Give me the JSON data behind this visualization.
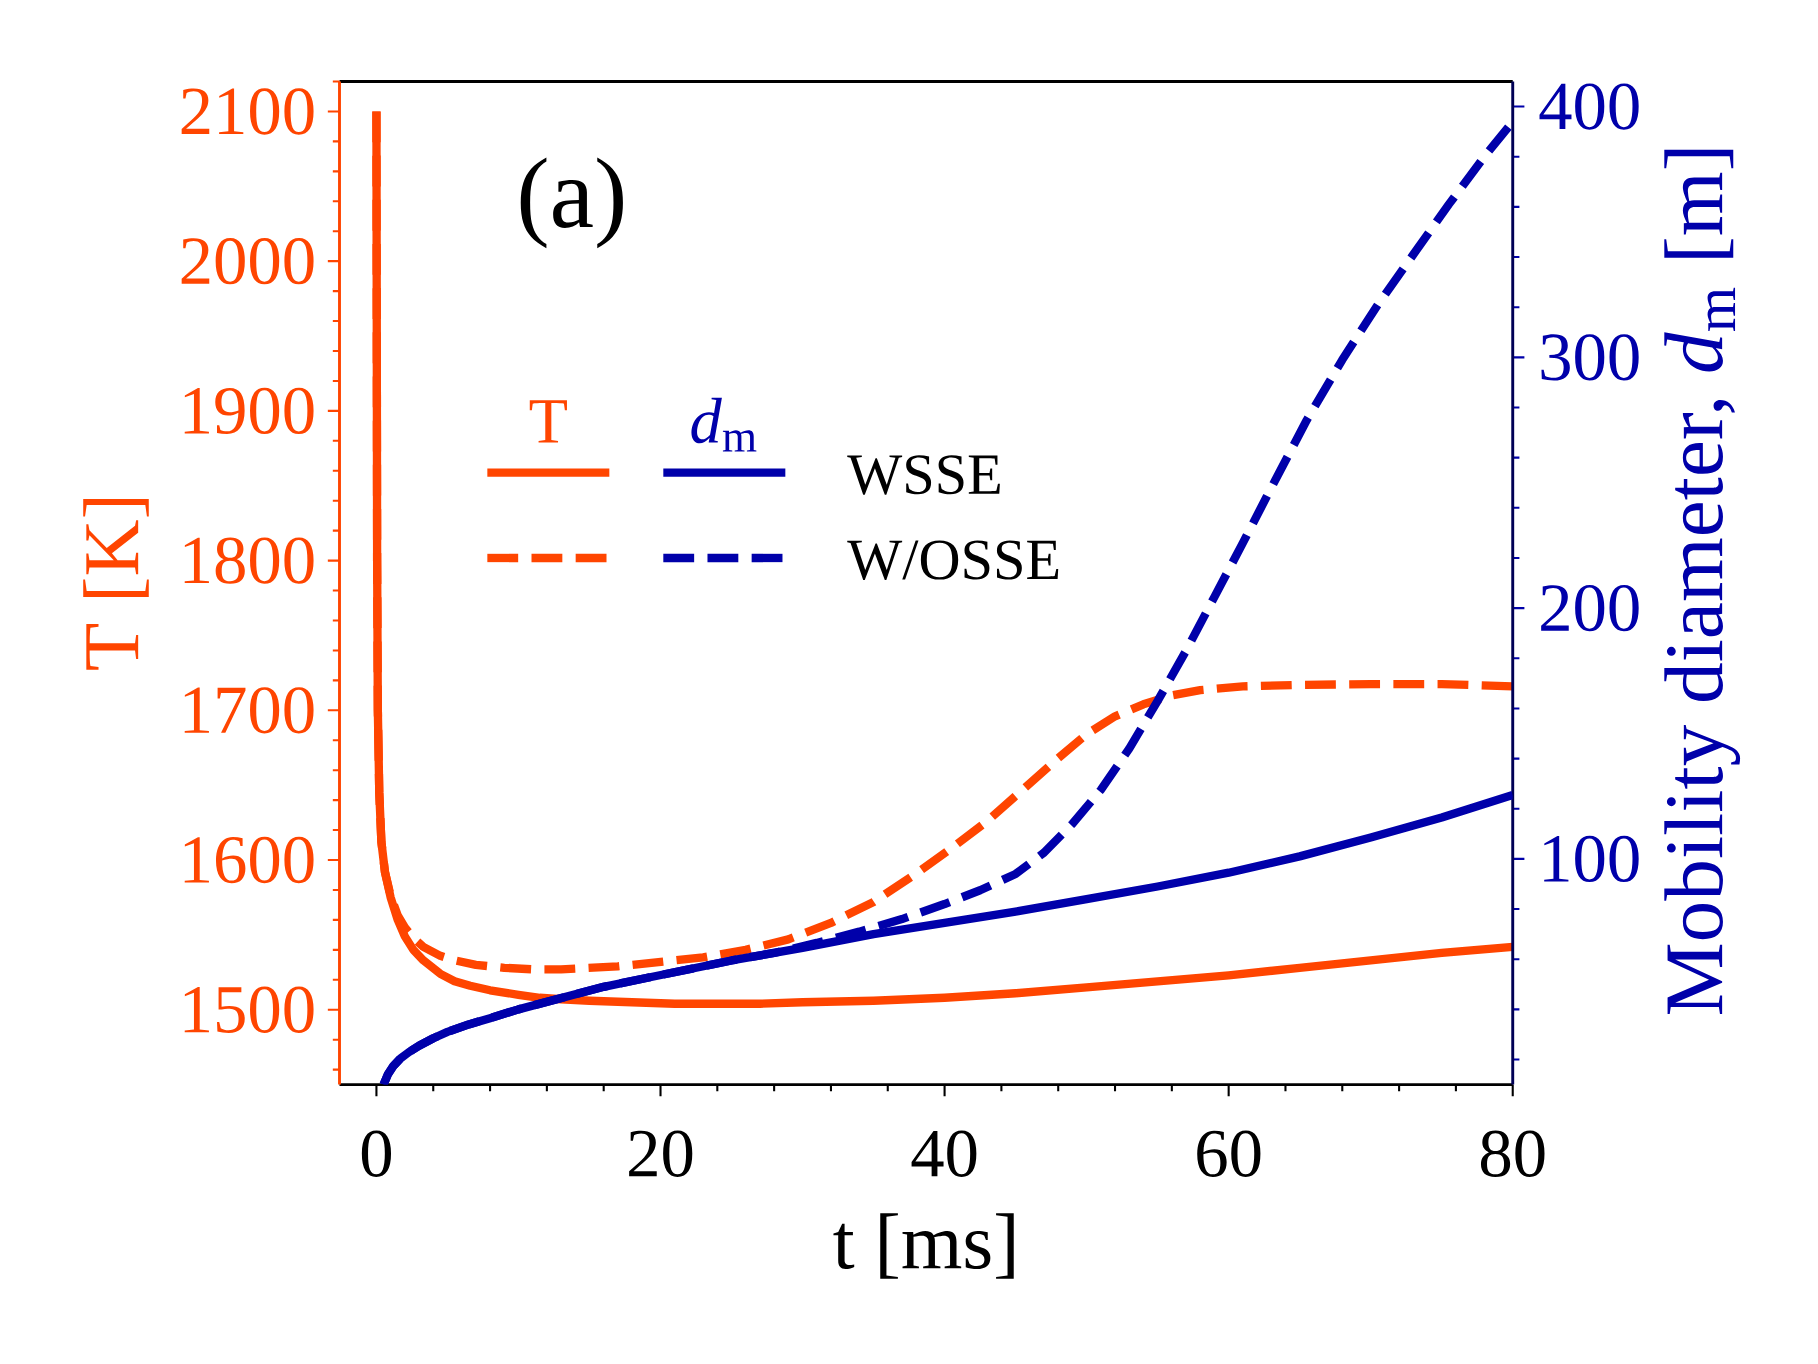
{
  "chart_data": {
    "type": "line",
    "xlabel": "t [ms]",
    "ylabel": "T [K]",
    "y2label": "Mobility diameter, *d*$_{m}$ [m]",
    "annotations": [
      "(a)",
      "T",
      "*d*$_{m}$"
    ],
    "xlim": [
      -2.6,
      80
    ],
    "xticks": [
      0,
      {
        "value": 4,
        "label": null
      },
      {
        "value": 8,
        "label": null
      },
      {
        "value": 12,
        "label": null
      },
      {
        "value": 16,
        "label": null
      },
      20,
      {
        "value": 24,
        "label": null
      },
      {
        "value": 28,
        "label": null
      },
      {
        "value": 32,
        "label": null
      },
      {
        "value": 36,
        "label": null
      },
      40,
      {
        "value": 44,
        "label": null
      },
      {
        "value": 48,
        "label": null
      },
      {
        "value": 52,
        "label": null
      },
      {
        "value": 56,
        "label": null
      },
      60,
      {
        "value": 64,
        "label": null
      },
      {
        "value": 68,
        "label": null
      },
      {
        "value": 72,
        "label": null
      },
      {
        "value": 76,
        "label": null
      },
      80
    ],
    "ylim": [
      1450,
      2120
    ],
    "yticks": [
      {
        "value": 1460,
        "label": null
      },
      {
        "value": 1480,
        "label": null
      },
      1500,
      {
        "value": 1520,
        "label": null
      },
      {
        "value": 1540,
        "label": null
      },
      {
        "value": 1560,
        "label": null
      },
      {
        "value": 1580,
        "label": null
      },
      1600,
      {
        "value": 1620,
        "label": null
      },
      {
        "value": 1640,
        "label": null
      },
      {
        "value": 1660,
        "label": null
      },
      {
        "value": 1680,
        "label": null
      },
      1700,
      {
        "value": 1720,
        "label": null
      },
      {
        "value": 1740,
        "label": null
      },
      {
        "value": 1760,
        "label": null
      },
      {
        "value": 1780,
        "label": null
      },
      1800,
      {
        "value": 1820,
        "label": null
      },
      {
        "value": 1840,
        "label": null
      },
      {
        "value": 1860,
        "label": null
      },
      {
        "value": 1880,
        "label": null
      },
      1900,
      {
        "value": 1920,
        "label": null
      },
      {
        "value": 1940,
        "label": null
      },
      {
        "value": 1960,
        "label": null
      },
      {
        "value": 1980,
        "label": null
      },
      2000,
      {
        "value": 2020,
        "label": null
      },
      {
        "value": 2040,
        "label": null
      },
      {
        "value": 2060,
        "label": null
      },
      {
        "value": 2080,
        "label": null
      },
      2100,
      {
        "value": 2120,
        "label": null
      }
    ],
    "y2lim": [
      10,
      410
    ],
    "y2ticks": [
      {
        "value": 20,
        "label": null
      },
      {
        "value": 40,
        "label": null
      },
      {
        "value": 60,
        "label": null
      },
      {
        "value": 80,
        "label": null
      },
      100,
      {
        "value": 120,
        "label": null
      },
      {
        "value": 140,
        "label": null
      },
      {
        "value": 160,
        "label": null
      },
      {
        "value": 180,
        "label": null
      },
      200,
      {
        "value": 220,
        "label": null
      },
      {
        "value": 240,
        "label": null
      },
      {
        "value": 260,
        "label": null
      },
      {
        "value": 280,
        "label": null
      },
      300,
      {
        "value": 320,
        "label": null
      },
      {
        "value": 340,
        "label": null
      },
      {
        "value": 360,
        "label": null
      },
      {
        "value": 380,
        "label": null
      },
      400
    ],
    "legend": "left",
    "series": [
      {
        "color": "#ff4500",
        "line_style": "solid",
        "x": [
          0,
          0.05,
          0.1,
          0.2,
          0.35,
          0.6,
          1.0,
          1.5,
          2.0,
          2.6,
          3.3,
          4.5,
          5.5,
          6.6,
          8,
          10,
          11.5,
          13,
          15,
          18,
          21,
          24,
          27,
          30,
          35,
          40,
          45,
          50,
          55,
          60,
          65,
          70,
          75,
          80
        ],
        "values": [
          2100,
          1800,
          1700,
          1645,
          1612,
          1592,
          1575,
          1560,
          1549,
          1540,
          1533,
          1524,
          1519,
          1516,
          1513,
          1510,
          1508,
          1507,
          1506,
          1505,
          1504,
          1504,
          1504,
          1505,
          1506,
          1508,
          1511,
          1515,
          1519,
          1523,
          1528,
          1533,
          1538,
          1542
        ]
      },
      {
        "color": "#ff4500",
        "line_style": "dashed",
        "x": [
          0,
          0.05,
          0.1,
          0.2,
          0.35,
          0.6,
          1.0,
          1.5,
          2.0,
          2.6,
          3.3,
          4.5,
          5.5,
          7,
          9,
          11,
          13,
          15,
          17,
          20,
          23,
          26,
          29,
          32,
          35,
          38,
          40.5,
          43,
          45.5,
          48,
          50,
          52,
          54,
          56,
          58,
          61,
          65,
          70,
          75,
          80
        ],
        "values": [
          2100,
          1800,
          1700,
          1645,
          1612,
          1592,
          1576,
          1563,
          1555,
          1548,
          1542,
          1536,
          1533,
          1530,
          1528,
          1527,
          1527,
          1528,
          1529,
          1532,
          1535,
          1540,
          1547,
          1558,
          1572,
          1591,
          1608,
          1626,
          1647,
          1668,
          1684,
          1696,
          1704,
          1710,
          1713.5,
          1716,
          1717,
          1717.5,
          1717.5,
          1716
        ]
      },
      {
        "name": "WSSE",
        "color": "#0000aa",
        "line_style": "solid",
        "axis": "y2",
        "x": [
          0.5,
          0.8,
          1.2,
          1.7,
          2.3,
          3,
          4,
          5,
          6.5,
          8,
          10,
          13,
          16,
          19,
          22,
          25,
          30,
          35,
          40,
          45,
          50,
          55,
          60,
          65,
          70,
          75,
          80
        ],
        "values": [
          10,
          14,
          17.5,
          20.5,
          23,
          25.5,
          28.5,
          31,
          34,
          36.5,
          40,
          44.5,
          49,
          52.5,
          56,
          59.5,
          64.5,
          70,
          74.5,
          79,
          84,
          89,
          94.5,
          101,
          108.5,
          116.5,
          125.5
        ]
      },
      {
        "name": "W/OSSE",
        "color": "#0000aa",
        "line_style": "dashed",
        "axis": "y2",
        "x": [
          0.5,
          0.8,
          1.2,
          1.7,
          2.3,
          3,
          4,
          5,
          6.5,
          8,
          10,
          13,
          16,
          19,
          22,
          25,
          28,
          31,
          34,
          37,
          40,
          42.5,
          45,
          47,
          49,
          51,
          53,
          55,
          57,
          59,
          61,
          63,
          65.5,
          68,
          70.5,
          73,
          75.5,
          78,
          80
        ],
        "values": [
          10,
          14,
          17.5,
          20.5,
          23,
          25.5,
          28.5,
          31,
          34,
          36.5,
          40,
          44.5,
          49,
          52.5,
          56,
          59.5,
          62.5,
          66.5,
          71,
          76,
          82,
          87.5,
          94,
          102.5,
          114,
          127.5,
          144,
          163,
          183,
          204.5,
          226,
          248,
          275,
          299,
          321,
          341,
          361,
          380,
          394
        ]
      }
    ]
  }
}
